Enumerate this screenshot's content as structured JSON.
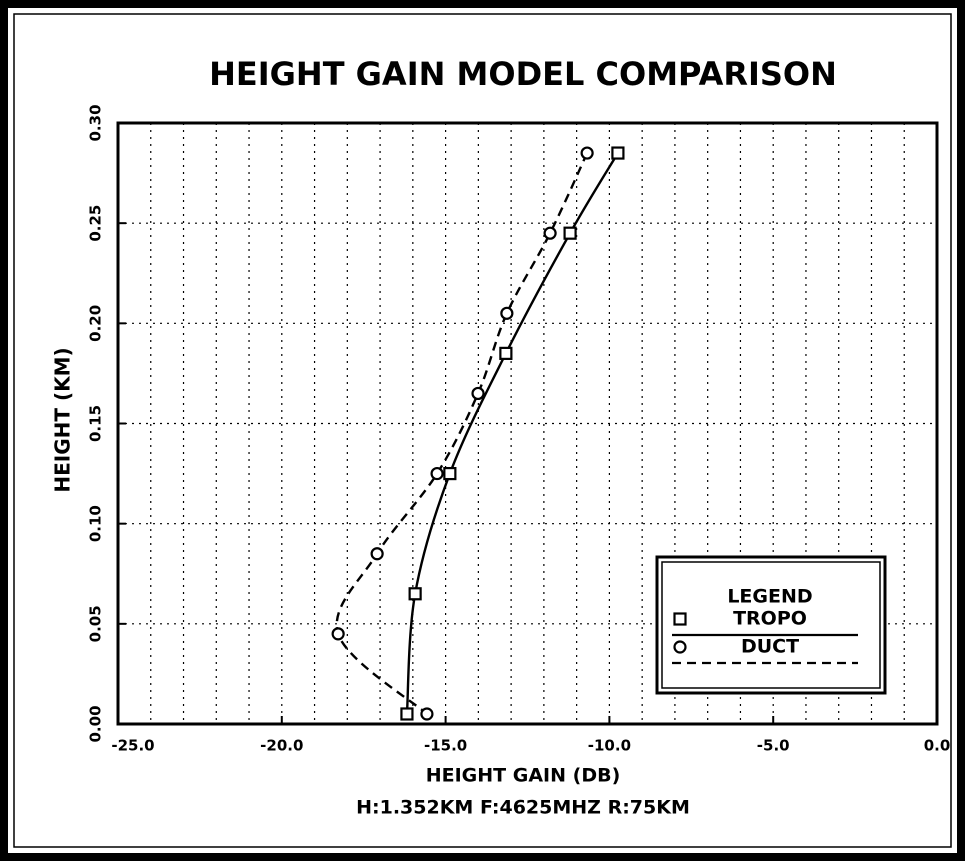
{
  "chart_data": {
    "type": "line",
    "title": "HEIGHT GAIN MODEL COMPARISON",
    "xlabel": "HEIGHT GAIN (DB)",
    "subtitle": "H:1.352KM F:4625MHZ R:75KM",
    "ylabel": "HEIGHT (KM)",
    "legend_title": "LEGEND",
    "legend": "lower right",
    "grid": true,
    "xlim": [
      -25,
      0
    ],
    "ylim": [
      0,
      0.3
    ],
    "xticks": [
      {
        "value": -25,
        "label": "-25.0"
      },
      {
        "value": -20,
        "label": "-20.0"
      },
      {
        "value": -15,
        "label": "-15.0"
      },
      {
        "value": -10,
        "label": "-10.0"
      },
      {
        "value": -5,
        "label": "-5.0"
      },
      {
        "value": 0,
        "label": "0.0"
      }
    ],
    "xminor": [
      -24,
      -23,
      -22,
      -21,
      -19,
      -18,
      -17,
      -16,
      -14,
      -13,
      -12,
      -11,
      -9,
      -8,
      -7,
      -6,
      -4,
      -3,
      -2,
      -1
    ],
    "yticks": [
      {
        "value": 0,
        "label": "0.00"
      },
      {
        "value": 0.05,
        "label": "0.05"
      },
      {
        "value": 0.1,
        "label": "0.10"
      },
      {
        "value": 0.15,
        "label": "0.15"
      },
      {
        "value": 0.2,
        "label": "0.20"
      },
      {
        "value": 0.25,
        "label": "0.25"
      },
      {
        "value": 0.3,
        "label": "0.30"
      }
    ],
    "series": [
      {
        "name": "TROPO",
        "color": "#000000",
        "marker": "square",
        "dash": false,
        "x": [
          -9.74,
          -11.2,
          -13.16,
          -14.87,
          -15.93,
          -16.18
        ],
        "values": [
          0.285,
          0.245,
          0.185,
          0.125,
          0.065,
          0.005
        ]
      },
      {
        "name": "DUCT",
        "color": "#000000",
        "marker": "circle",
        "dash": true,
        "x": [
          -10.68,
          -11.81,
          -13.13,
          -14.01,
          -15.26,
          -17.09,
          -18.28,
          -15.57
        ],
        "values": [
          0.285,
          0.245,
          0.205,
          0.165,
          0.125,
          0.085,
          0.045,
          0.005
        ]
      }
    ]
  }
}
